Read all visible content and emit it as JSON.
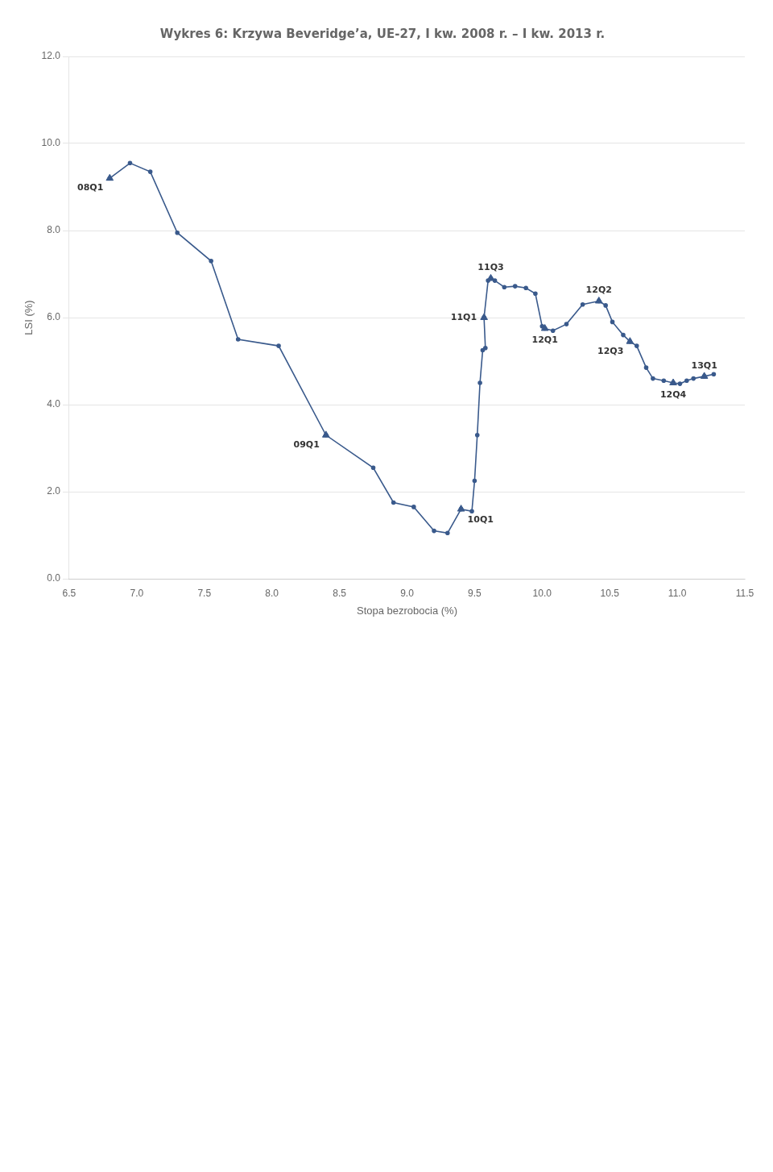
{
  "chart_data": {
    "type": "line",
    "title": "Wykres 6: Krzywa Beveridge’a, UE-27, I kw. 2008 r. – I kw. 2013 r.",
    "x_label": "Stopa bezrobocia (%)",
    "y_label": "LSI (%)",
    "x": [
      6.8,
      6.95,
      7.1,
      7.3,
      7.55,
      7.75,
      8.05,
      8.4,
      8.75,
      8.9,
      9.05,
      9.2,
      9.3,
      9.4,
      9.48,
      9.5,
      9.52,
      9.54,
      9.56,
      9.58,
      9.57,
      9.6,
      9.62,
      9.65,
      9.72,
      9.8,
      9.88,
      9.95,
      10.0,
      10.02,
      10.08,
      10.18,
      10.3,
      10.42,
      10.47,
      10.52,
      10.6,
      10.65,
      10.7,
      10.77,
      10.82,
      10.9,
      10.97,
      11.02,
      11.07,
      11.12,
      11.2,
      11.27
    ],
    "series": [
      {
        "color": "#3A5A8C",
        "marker": "circle",
        "values": [
          9.2,
          9.55,
          9.35,
          7.95,
          7.3,
          5.5,
          5.35,
          3.3,
          2.55,
          1.75,
          1.65,
          1.1,
          1.05,
          1.6,
          1.55,
          2.25,
          3.3,
          4.5,
          5.25,
          5.3,
          6.0,
          6.85,
          6.9,
          6.85,
          6.7,
          6.72,
          6.68,
          6.55,
          5.8,
          5.75,
          5.7,
          5.85,
          6.3,
          6.38,
          6.28,
          5.9,
          5.6,
          5.45,
          5.35,
          4.85,
          4.6,
          4.55,
          4.5,
          4.48,
          4.55,
          4.6,
          4.65,
          4.7
        ]
      }
    ],
    "annotations": [
      {
        "text": "08Q1",
        "x": 6.8,
        "y": 9.2,
        "marker": "triangle"
      },
      {
        "text": "09Q1",
        "x": 8.4,
        "y": 3.3,
        "marker": "triangle"
      },
      {
        "text": "10Q1",
        "x": 9.4,
        "y": 1.6,
        "marker": "triangle"
      },
      {
        "text": "11Q1",
        "x": 9.57,
        "y": 6.0,
        "marker": "triangle"
      },
      {
        "text": "11Q3",
        "x": 9.62,
        "y": 6.9,
        "marker": "triangle"
      },
      {
        "text": "12Q1",
        "x": 10.02,
        "y": 5.75,
        "marker": "triangle"
      },
      {
        "text": "12Q2",
        "x": 10.42,
        "y": 6.38,
        "marker": "triangle"
      },
      {
        "text": "12Q3",
        "x": 10.65,
        "y": 5.45,
        "marker": "triangle"
      },
      {
        "text": "12Q4",
        "x": 10.97,
        "y": 4.5,
        "marker": "triangle"
      },
      {
        "text": "13Q1",
        "x": 11.2,
        "y": 4.65,
        "marker": "triangle"
      }
    ],
    "xlim": [
      6.5,
      11.5
    ],
    "ylim": [
      0.0,
      12.0
    ],
    "xticks": [
      6.5,
      {
        "value": 7,
        "label": "7.0"
      },
      7.5,
      {
        "value": 8,
        "label": "8.0"
      },
      8.5,
      {
        "value": 9,
        "label": "9.0"
      },
      9.5,
      {
        "value": 10,
        "label": "10.0"
      },
      10.5,
      {
        "value": 11,
        "label": "11.0"
      },
      11.5
    ],
    "yticks": [
      {
        "value": 0,
        "label": "0.0"
      },
      {
        "value": 2,
        "label": "2.0"
      },
      {
        "value": 4,
        "label": "4.0"
      },
      {
        "value": 6,
        "label": "6.0"
      },
      {
        "value": 8,
        "label": "8.0"
      },
      {
        "value": 10,
        "label": "10.0"
      },
      {
        "value": 12,
        "label": "12.0"
      }
    ],
    "grid": "y"
  }
}
